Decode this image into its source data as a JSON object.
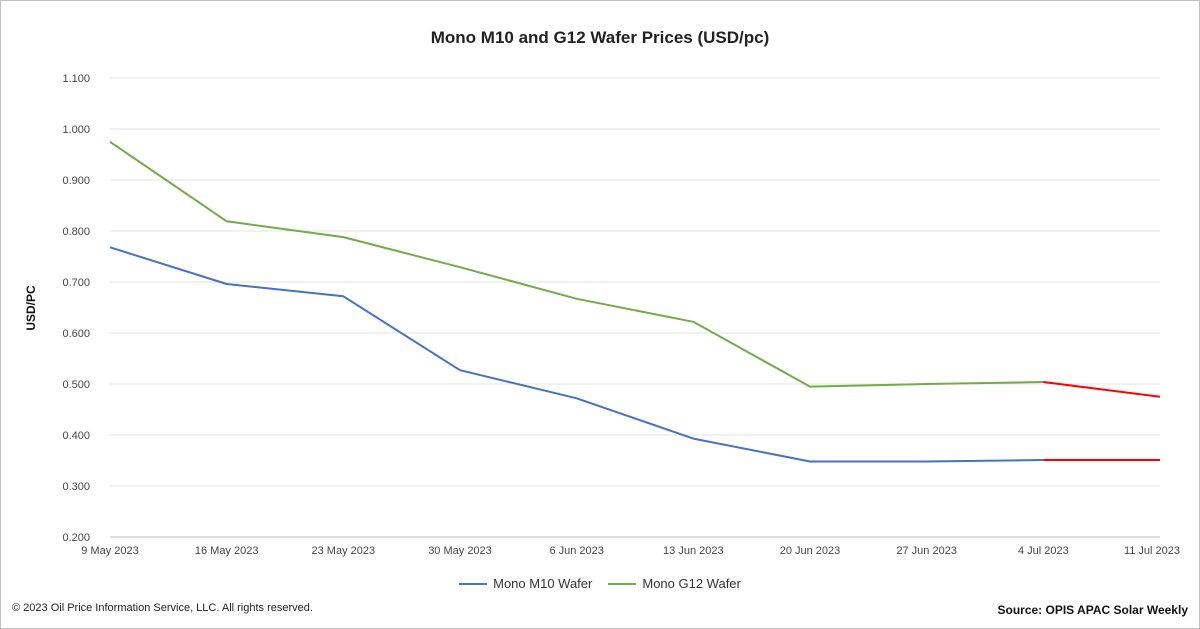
{
  "chart_data": {
    "type": "line",
    "title": "Mono M10 and G12 Wafer Prices (USD/pc)",
    "xlabel": "",
    "ylabel": "USD/PC",
    "ylim": [
      0.2,
      1.1
    ],
    "yticks": [
      "0.200",
      "0.300",
      "0.400",
      "0.500",
      "0.600",
      "0.700",
      "0.800",
      "0.900",
      "1.000",
      "1.100"
    ],
    "categories": [
      "9 May 2023",
      "16 May 2023",
      "23 May 2023",
      "30 May 2023",
      "6 Jun 2023",
      "13 Jun 2023",
      "20 Jun 2023",
      "27 Jun 2023",
      "4 Jul 2023",
      "11 Jul 2023"
    ],
    "grid": true,
    "legend_position": "bottom",
    "series": [
      {
        "name": "Mono M10 Wafer",
        "color": "#4472c4",
        "values": [
          0.768,
          0.696,
          0.672,
          0.527,
          0.472,
          0.393,
          0.348,
          0.348,
          0.351,
          0.351
        ]
      },
      {
        "name": "Mono G12 Wafer",
        "color": "#70ad47",
        "values": [
          0.975,
          0.819,
          0.788,
          0.729,
          0.667,
          0.622,
          0.495,
          0.5,
          0.504,
          0.475
        ]
      }
    ],
    "latest_segment_color": "#ff0000"
  },
  "footer": {
    "copyright": "© 2023 Oil Price Information Service, LLC. All rights reserved.",
    "source": "Source: OPIS APAC Solar Weekly"
  }
}
